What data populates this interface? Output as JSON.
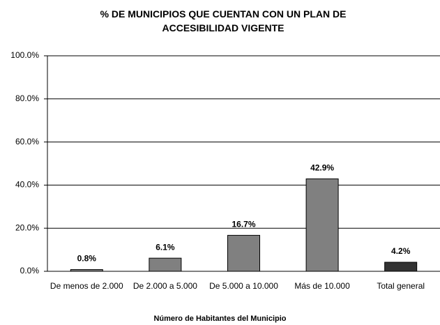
{
  "chart_data": {
    "type": "bar",
    "title": "% DE MUNICIPIOS QUE CUENTAN CON UN PLAN DE ACCESIBILIDAD VIGENTE",
    "x_label": "Número de Habitantes del Municipio",
    "categories": [
      "De menos de 2.000",
      "De 2.000 a 5.000",
      "De 5.000 a 10.000",
      "Más de 10.000",
      "Total general"
    ],
    "values": [
      0.8,
      6.1,
      16.7,
      42.9,
      4.2
    ],
    "value_labels": [
      "0.8%",
      "6.1%",
      "16.7%",
      "42.9%",
      "4.2%"
    ],
    "colors": [
      "#808080",
      "#808080",
      "#808080",
      "#808080",
      "#333333"
    ],
    "ylim": [
      0,
      100
    ],
    "yticks": [
      {
        "value": 0,
        "label": "0.0%"
      },
      {
        "value": 20,
        "label": "20.0%"
      },
      {
        "value": 40,
        "label": "40.0%"
      },
      {
        "value": 60,
        "label": "60.0%"
      },
      {
        "value": 80,
        "label": "80.0%"
      },
      {
        "value": 100,
        "label": "100.0%"
      }
    ],
    "grid": true
  }
}
